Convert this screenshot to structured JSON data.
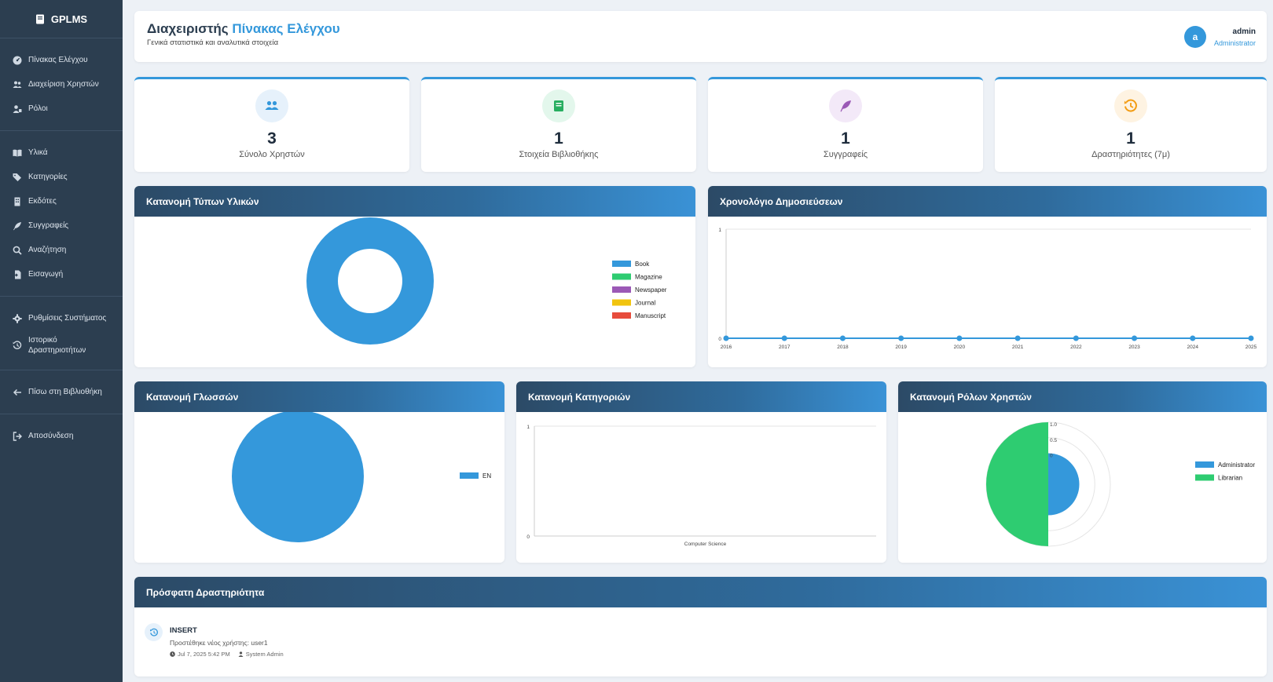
{
  "sidebar": {
    "brand": "GPLMS",
    "items": [
      {
        "label": "Πίνακας Ελέγχου",
        "icon": "gauge-icon"
      },
      {
        "label": "Διαχείριση Χρηστών",
        "icon": "users-icon"
      },
      {
        "label": "Ρόλοι",
        "icon": "user-tag-icon"
      },
      {
        "label": "Υλικά",
        "icon": "book-open-icon"
      },
      {
        "label": "Κατηγορίες",
        "icon": "tags-icon"
      },
      {
        "label": "Εκδότες",
        "icon": "building-icon"
      },
      {
        "label": "Συγγραφείς",
        "icon": "feather-icon"
      },
      {
        "label": "Αναζήτηση",
        "icon": "search-icon"
      },
      {
        "label": "Εισαγωγή",
        "icon": "file-import-icon"
      },
      {
        "label": "Ρυθμίσεις Συστήματος",
        "icon": "gear-icon"
      },
      {
        "label": "Ιστορικό Δραστηριοτήτων",
        "icon": "history-icon"
      },
      {
        "label": "Πίσω στη Βιβλιοθήκη",
        "icon": "arrow-left-icon"
      },
      {
        "label": "Αποσύνδεση",
        "icon": "sign-out-icon"
      }
    ]
  },
  "header": {
    "title_prefix": "Διαχειριστής",
    "title_accent": "Πίνακας Ελέγχου",
    "subtitle": "Γενικά στατιστικά και αναλυτικά στοιχεία",
    "user_initial": "a",
    "user_name": "admin",
    "user_role": "Administrator"
  },
  "stats": [
    {
      "value": "3",
      "label": "Σύνολο Χρηστών",
      "icon": "users-icon"
    },
    {
      "value": "1",
      "label": "Στοιχεία Βιβλιοθήκης",
      "icon": "book-icon"
    },
    {
      "value": "1",
      "label": "Συγγραφείς",
      "icon": "feather-icon"
    },
    {
      "value": "1",
      "label": "Δραστηριότητες (7μ)",
      "icon": "history-icon"
    }
  ],
  "panels": {
    "types": "Κατανομή Τύπων Υλικών",
    "timeline": "Χρονολόγιο Δημοσιεύσεων",
    "languages": "Κατανομή Γλωσσών",
    "categories": "Κατανομή Κατηγοριών",
    "roles": "Κατανομή Ρόλων Χρηστών",
    "activity": "Πρόσφατη Δραστηριότητα"
  },
  "colors": {
    "blue": "#3498db",
    "green": "#2ecc71",
    "purple": "#9b59b6",
    "yellow": "#f1c40f",
    "red": "#e74c3c",
    "orange": "#f39c12"
  },
  "chart_data": [
    {
      "id": "types",
      "type": "pie",
      "title": "Κατανομή Τύπων Υλικών",
      "categories": [
        "Book",
        "Magazine",
        "Newspaper",
        "Journal",
        "Manuscript"
      ],
      "values": [
        1,
        0,
        0,
        0,
        0
      ],
      "colors": [
        "#3498db",
        "#2ecc71",
        "#9b59b6",
        "#f1c40f",
        "#e74c3c"
      ],
      "legend": "right"
    },
    {
      "id": "timeline",
      "type": "line",
      "title": "Χρονολόγιο Δημοσιεύσεων",
      "x": [
        "2016",
        "2017",
        "2018",
        "2019",
        "2020",
        "2021",
        "2022",
        "2023",
        "2024",
        "2025"
      ],
      "values": [
        0,
        0,
        0,
        0,
        0,
        0,
        0,
        0,
        0,
        0
      ],
      "ylim": [
        0,
        1
      ],
      "yticks": [
        "0",
        "1"
      ]
    },
    {
      "id": "languages",
      "type": "pie",
      "title": "Κατανομή Γλωσσών",
      "categories": [
        "EN"
      ],
      "values": [
        1
      ],
      "colors": [
        "#3498db"
      ],
      "legend": "right"
    },
    {
      "id": "categories",
      "type": "bar",
      "title": "Κατανομή Κατηγοριών",
      "categories": [
        "Computer Science"
      ],
      "values": [
        0
      ],
      "ylim": [
        0,
        1
      ],
      "yticks": [
        "0",
        "1"
      ]
    },
    {
      "id": "roles",
      "type": "polar",
      "title": "Κατανομή Ρόλων Χρηστών",
      "categories": [
        "Administrator",
        "Librarian"
      ],
      "values": [
        0.5,
        1.0
      ],
      "rticks": [
        "0",
        "0.5",
        "1.0"
      ],
      "colors": [
        "#3498db",
        "#2ecc71"
      ],
      "legend": "right"
    }
  ],
  "activity": {
    "type": "INSERT",
    "description": "Προστέθηκε νέος χρήστης: user1",
    "time": "Jul 7, 2025 5:42 PM",
    "user": "System Admin"
  }
}
